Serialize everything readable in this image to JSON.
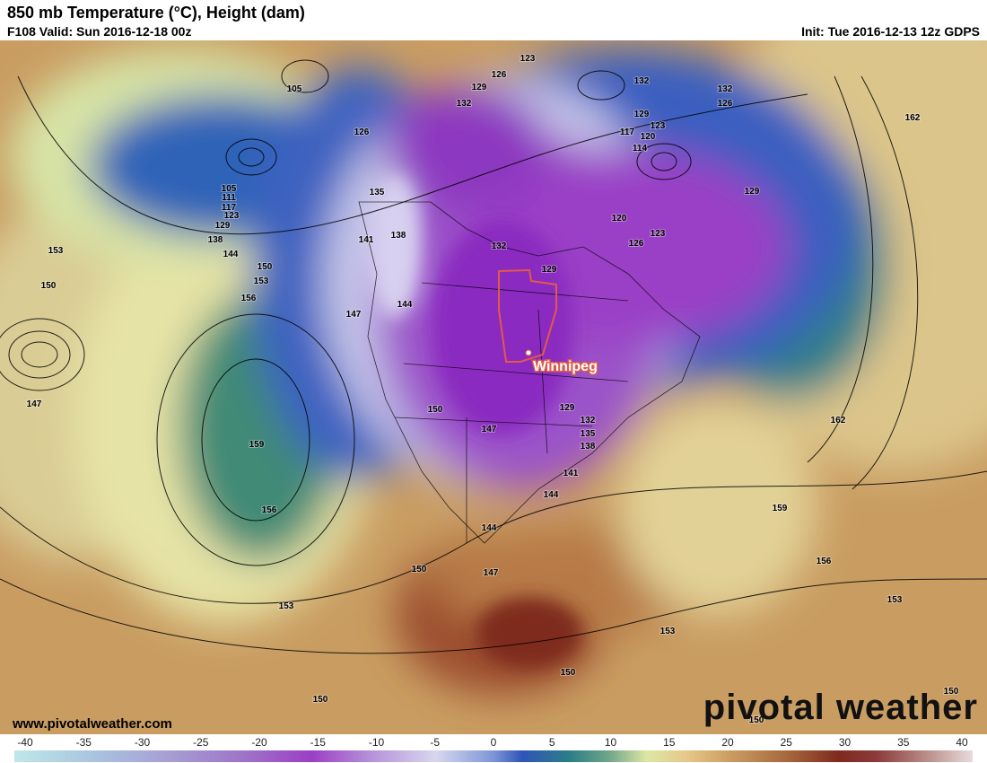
{
  "header": {
    "title": "850 mb Temperature (°C), Height (dam)",
    "valid": "F108 Valid: Sun 2016-12-18 00z",
    "init": "Init: Tue 2016-12-13 12z GDPS"
  },
  "map": {
    "city": "Winnipeg",
    "contour_labels": [
      105,
      126,
      123,
      126,
      129,
      132,
      132,
      129,
      123,
      120,
      117,
      114,
      132,
      126,
      162,
      129,
      105,
      111,
      117,
      123,
      129,
      138,
      144,
      153,
      150,
      150,
      153,
      156,
      135,
      141,
      138,
      132,
      129,
      120,
      123,
      126,
      147,
      144,
      147,
      159,
      150,
      147,
      129,
      132,
      135,
      138,
      141,
      144,
      156,
      162,
      159,
      156,
      153,
      144,
      147,
      150,
      153,
      153,
      150,
      150,
      150,
      150
    ]
  },
  "footer": {
    "website": "www.pivotalweather.com",
    "logo": "pivotal weather"
  },
  "colorbar": {
    "ticks": [
      -40,
      -35,
      -30,
      -25,
      -20,
      -15,
      -10,
      -5,
      0,
      5,
      10,
      15,
      20,
      25,
      30,
      35,
      40
    ]
  }
}
